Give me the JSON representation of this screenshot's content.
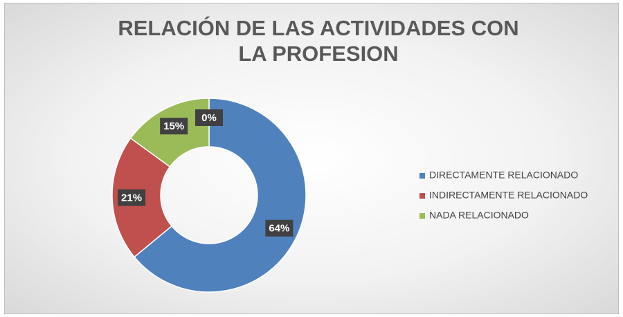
{
  "chart_data": {
    "type": "donut",
    "title": "RELACIÓN DE LAS ACTIVIDADES CON LA PROFESION",
    "categories": [
      "DIRECTAMENTE RELACIONADO",
      "INDIRECTAMENTE RELACIONADO",
      "NADA RELACIONADO",
      null
    ],
    "values": [
      64,
      21,
      15,
      0
    ],
    "value_labels": [
      "64%",
      "21%",
      "15%",
      "0%"
    ],
    "colors": [
      "#4f81bd",
      "#c0504d",
      "#9bbb59",
      "#8064a2"
    ],
    "legend": "right"
  }
}
